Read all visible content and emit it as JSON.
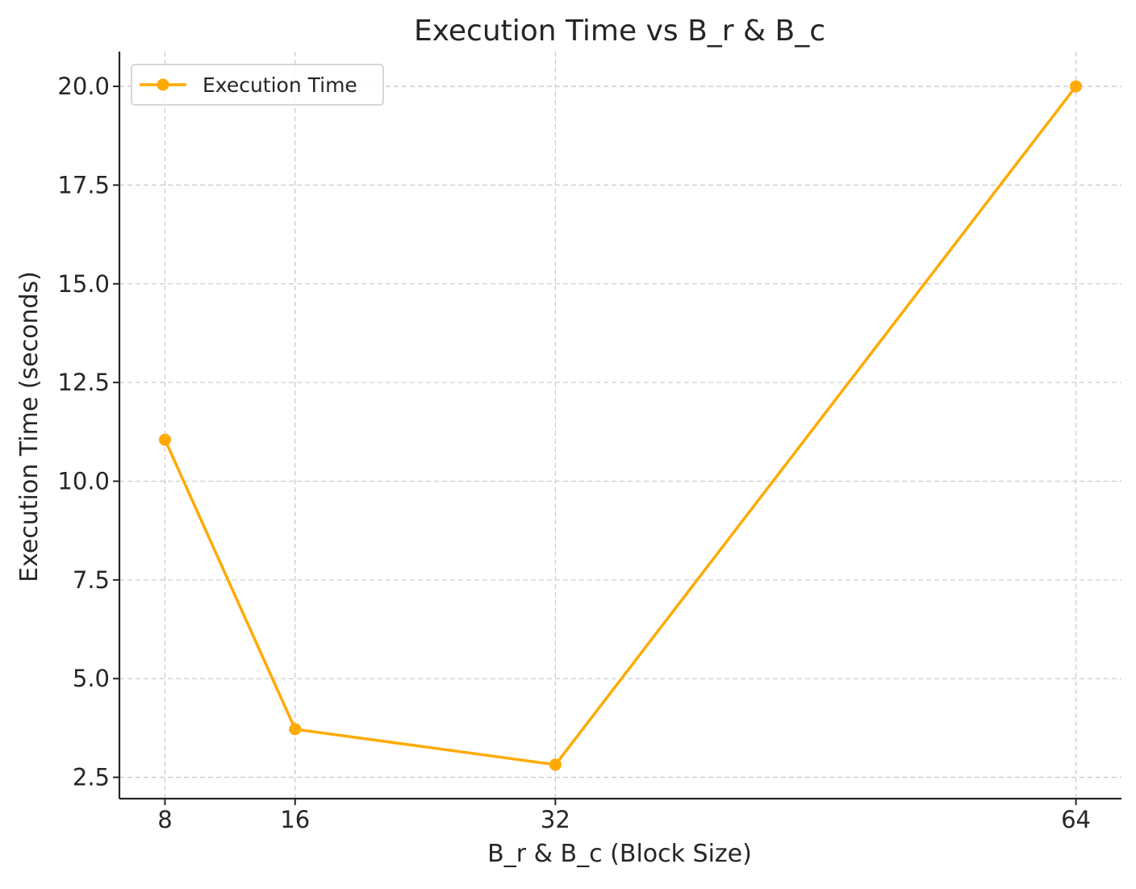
{
  "chart_data": {
    "type": "line",
    "title": "Execution Time vs B_r & B_c",
    "xlabel": "B_r & B_c (Block Size)",
    "ylabel": "Execution Time (seconds)",
    "x": [
      8,
      16,
      32,
      64
    ],
    "x_tick_labels": [
      "8",
      "16",
      "32",
      "64"
    ],
    "y_ticks": [
      2.5,
      5.0,
      7.5,
      10.0,
      12.5,
      15.0,
      17.5,
      20.0
    ],
    "y_tick_labels": [
      "2.5",
      "5.0",
      "7.5",
      "10.0",
      "12.5",
      "15.0",
      "17.5",
      "20.0"
    ],
    "xlim": [
      5.2,
      66.8
    ],
    "ylim": [
      1.96,
      20.88
    ],
    "grid": true,
    "legend_position": "top-left",
    "series": [
      {
        "name": "Execution Time",
        "color": "#FFAA00",
        "marker": "circle",
        "values": [
          11.05,
          3.72,
          2.82,
          20.0
        ]
      }
    ]
  }
}
